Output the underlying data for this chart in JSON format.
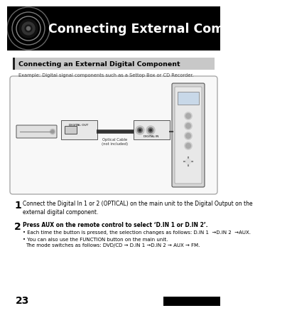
{
  "title": "Connecting External Components",
  "section_title": "Connecting an External Digital Component",
  "example_text": "Example: Digital signal components such as a Settop Box or CD Recorder.",
  "step1_num": "1",
  "step1_text": "Connect the Digital In 1 or 2 (OPTICAL) on the main unit to the Digital Output on the\nexternal digital component.",
  "step2_num": "2",
  "step2_line": "Press AUX on the remote control to select ‘D.IN 1 or D.IN 2’.",
  "bullet1": "Each time the button is pressed, the selection changes as follows: D.IN 1  →D.IN 2  →AUX.",
  "bullet2a": "You can also use the ",
  "bullet2b": "FUNCTION",
  "bullet2c": " button on the main unit.",
  "bullet2d": "The mode switches as follows: DVD/CD → D.IN 1 →D.IN 2 → AUX → FM.",
  "page_num": "23",
  "bg_color": "#ffffff",
  "header_black": "#000000",
  "section_gray": "#c8c8c8",
  "diagram_bg": "#f5f5f5",
  "diagram_edge": "#aaaaaa"
}
